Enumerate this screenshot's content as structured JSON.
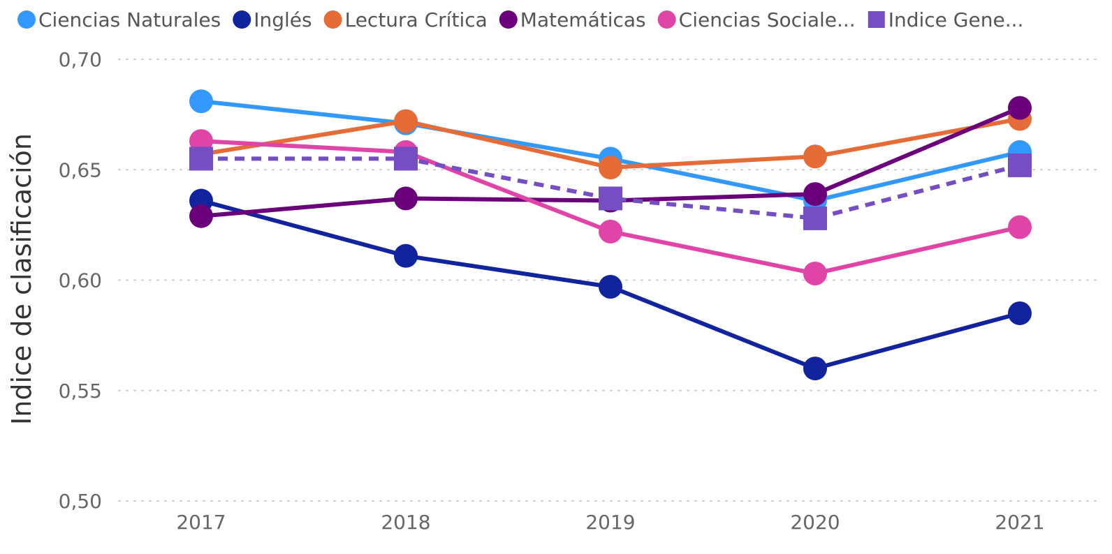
{
  "chart_data": {
    "type": "line",
    "categories": [
      "2017",
      "2018",
      "2019",
      "2020",
      "2021"
    ],
    "ylabel": "Indice de clasificación",
    "xlabel": "",
    "ylim": [
      0.5,
      0.7
    ],
    "yticks": [
      {
        "value": 0.5,
        "label": "0,50"
      },
      {
        "value": 0.55,
        "label": "0,55"
      },
      {
        "value": 0.6,
        "label": "0,60"
      },
      {
        "value": 0.65,
        "label": "0,65"
      },
      {
        "value": 0.7,
        "label": "0,70"
      }
    ],
    "grid": true,
    "legend_position": "top",
    "series": [
      {
        "name": "Ciencias Naturales",
        "legend_label": "Ciencias Naturales",
        "color": "#3399ff",
        "marker": "circle",
        "dashed": false,
        "values": [
          0.681,
          0.671,
          0.655,
          0.636,
          0.658
        ]
      },
      {
        "name": "Inglés",
        "legend_label": "Inglés",
        "color": "#12239e",
        "marker": "circle",
        "dashed": false,
        "values": [
          0.636,
          0.611,
          0.597,
          0.56,
          0.585
        ]
      },
      {
        "name": "Lectura Crítica",
        "legend_label": "Lectura Crítica",
        "color": "#e66c37",
        "marker": "circle",
        "dashed": false,
        "values": [
          0.657,
          0.672,
          0.651,
          0.656,
          0.673
        ]
      },
      {
        "name": "Matemáticas",
        "legend_label": "Matemáticas",
        "color": "#6b007b",
        "marker": "circle",
        "dashed": false,
        "values": [
          0.629,
          0.637,
          0.636,
          0.639,
          0.678
        ]
      },
      {
        "name": "Ciencias Sociales",
        "legend_label": "Ciencias Sociale...",
        "color": "#e044a7",
        "marker": "circle",
        "dashed": false,
        "values": [
          0.663,
          0.658,
          0.622,
          0.603,
          0.624
        ]
      },
      {
        "name": "Indice General",
        "legend_label": "Indice Gene...",
        "color": "#744ec2",
        "marker": "square",
        "dashed": true,
        "values": [
          0.655,
          0.655,
          0.637,
          0.628,
          0.652
        ]
      }
    ]
  }
}
